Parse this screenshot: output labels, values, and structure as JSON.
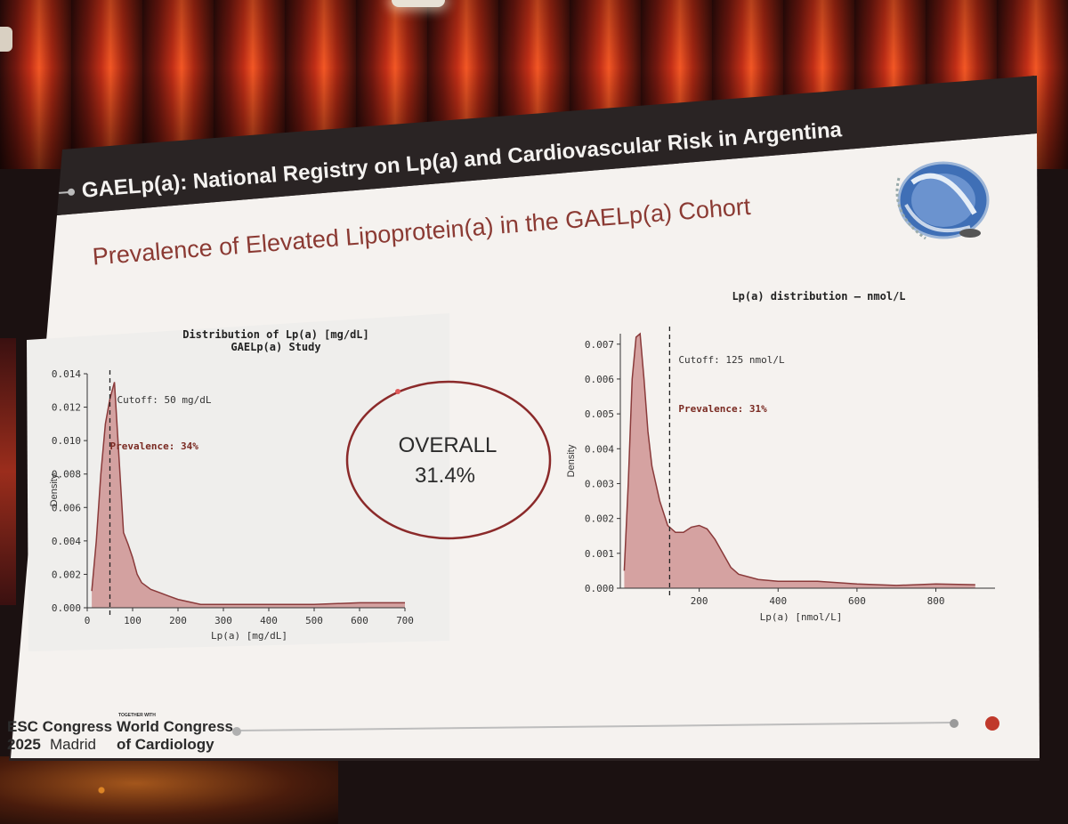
{
  "slide": {
    "header_title": "GAELp(a): National Registry on Lp(a) and Cardiovascular Risk in Argentina",
    "subtitle": "Prevalence of Elevated Lipoprotein(a) in the GAELp(a) Cohort",
    "overall_label": "OVERALL",
    "overall_value": "31.4%",
    "footer": {
      "esc_line1": "ESC Congress",
      "esc_year": "2025",
      "esc_city": "Madrid",
      "together": "TOGETHER WITH",
      "wcc_line1": "World Congress",
      "wcc_line2": "of Cardiology"
    },
    "colors": {
      "header_bg": "#2a2424",
      "accent": "#8b2a2a",
      "fill": "#c98787",
      "stroke": "#8a3a3a",
      "subtitle": "#8b3a33"
    }
  },
  "chart_data": [
    {
      "type": "area",
      "title": "Distribution of Lp(a) [mg/dL]",
      "subtitle": "GAELp(a) Study",
      "xlabel": "Lp(a) [mg/dL]",
      "ylabel": "Density",
      "xlim": [
        0,
        700
      ],
      "ylim": [
        0,
        0.014
      ],
      "x_ticks": [
        "0",
        "100",
        "200",
        "300",
        "400",
        "500",
        "600",
        "700"
      ],
      "y_ticks": [
        "0.000",
        "0.002",
        "0.004",
        "0.006",
        "0.008",
        "0.010",
        "0.012",
        "0.014"
      ],
      "x": [
        10,
        20,
        30,
        40,
        50,
        60,
        70,
        80,
        90,
        100,
        110,
        120,
        140,
        160,
        180,
        200,
        250,
        300,
        400,
        500,
        600,
        700
      ],
      "y": [
        0.001,
        0.004,
        0.008,
        0.011,
        0.0125,
        0.0135,
        0.009,
        0.0045,
        0.0038,
        0.003,
        0.002,
        0.0015,
        0.0011,
        0.0009,
        0.0007,
        0.0005,
        0.0002,
        0.0002,
        0.0002,
        0.0002,
        0.0003,
        0.0003
      ],
      "cutoff_x": 50,
      "cutoff_label": "Cutoff: 50 mg/dL",
      "prevalence_label": "Prevalence: 34%"
    },
    {
      "type": "area",
      "title": "Lp(a) distribution — nmol/L",
      "xlabel": "Lp(a) [nmol/L]",
      "ylabel": "Density",
      "xlim": [
        0,
        950
      ],
      "ylim": [
        0,
        0.0073
      ],
      "x_ticks": [
        "200",
        "400",
        "600",
        "800"
      ],
      "x_tick_values": [
        200,
        400,
        600,
        800
      ],
      "y_ticks": [
        "0.000",
        "0.001",
        "0.002",
        "0.003",
        "0.004",
        "0.005",
        "0.006",
        "0.007"
      ],
      "x": [
        10,
        20,
        30,
        40,
        50,
        60,
        70,
        80,
        100,
        120,
        140,
        160,
        180,
        200,
        220,
        240,
        260,
        280,
        300,
        350,
        400,
        500,
        600,
        700,
        800,
        900
      ],
      "y": [
        0.0005,
        0.003,
        0.006,
        0.0072,
        0.0073,
        0.006,
        0.0045,
        0.0035,
        0.0025,
        0.0018,
        0.0016,
        0.0016,
        0.00175,
        0.0018,
        0.0017,
        0.0014,
        0.001,
        0.0006,
        0.0004,
        0.00025,
        0.0002,
        0.0002,
        0.00012,
        8e-05,
        0.00012,
        0.0001
      ],
      "cutoff_x": 125,
      "cutoff_label": "Cutoff: 125 nmol/L",
      "prevalence_label": "Prevalence: 31%"
    }
  ]
}
